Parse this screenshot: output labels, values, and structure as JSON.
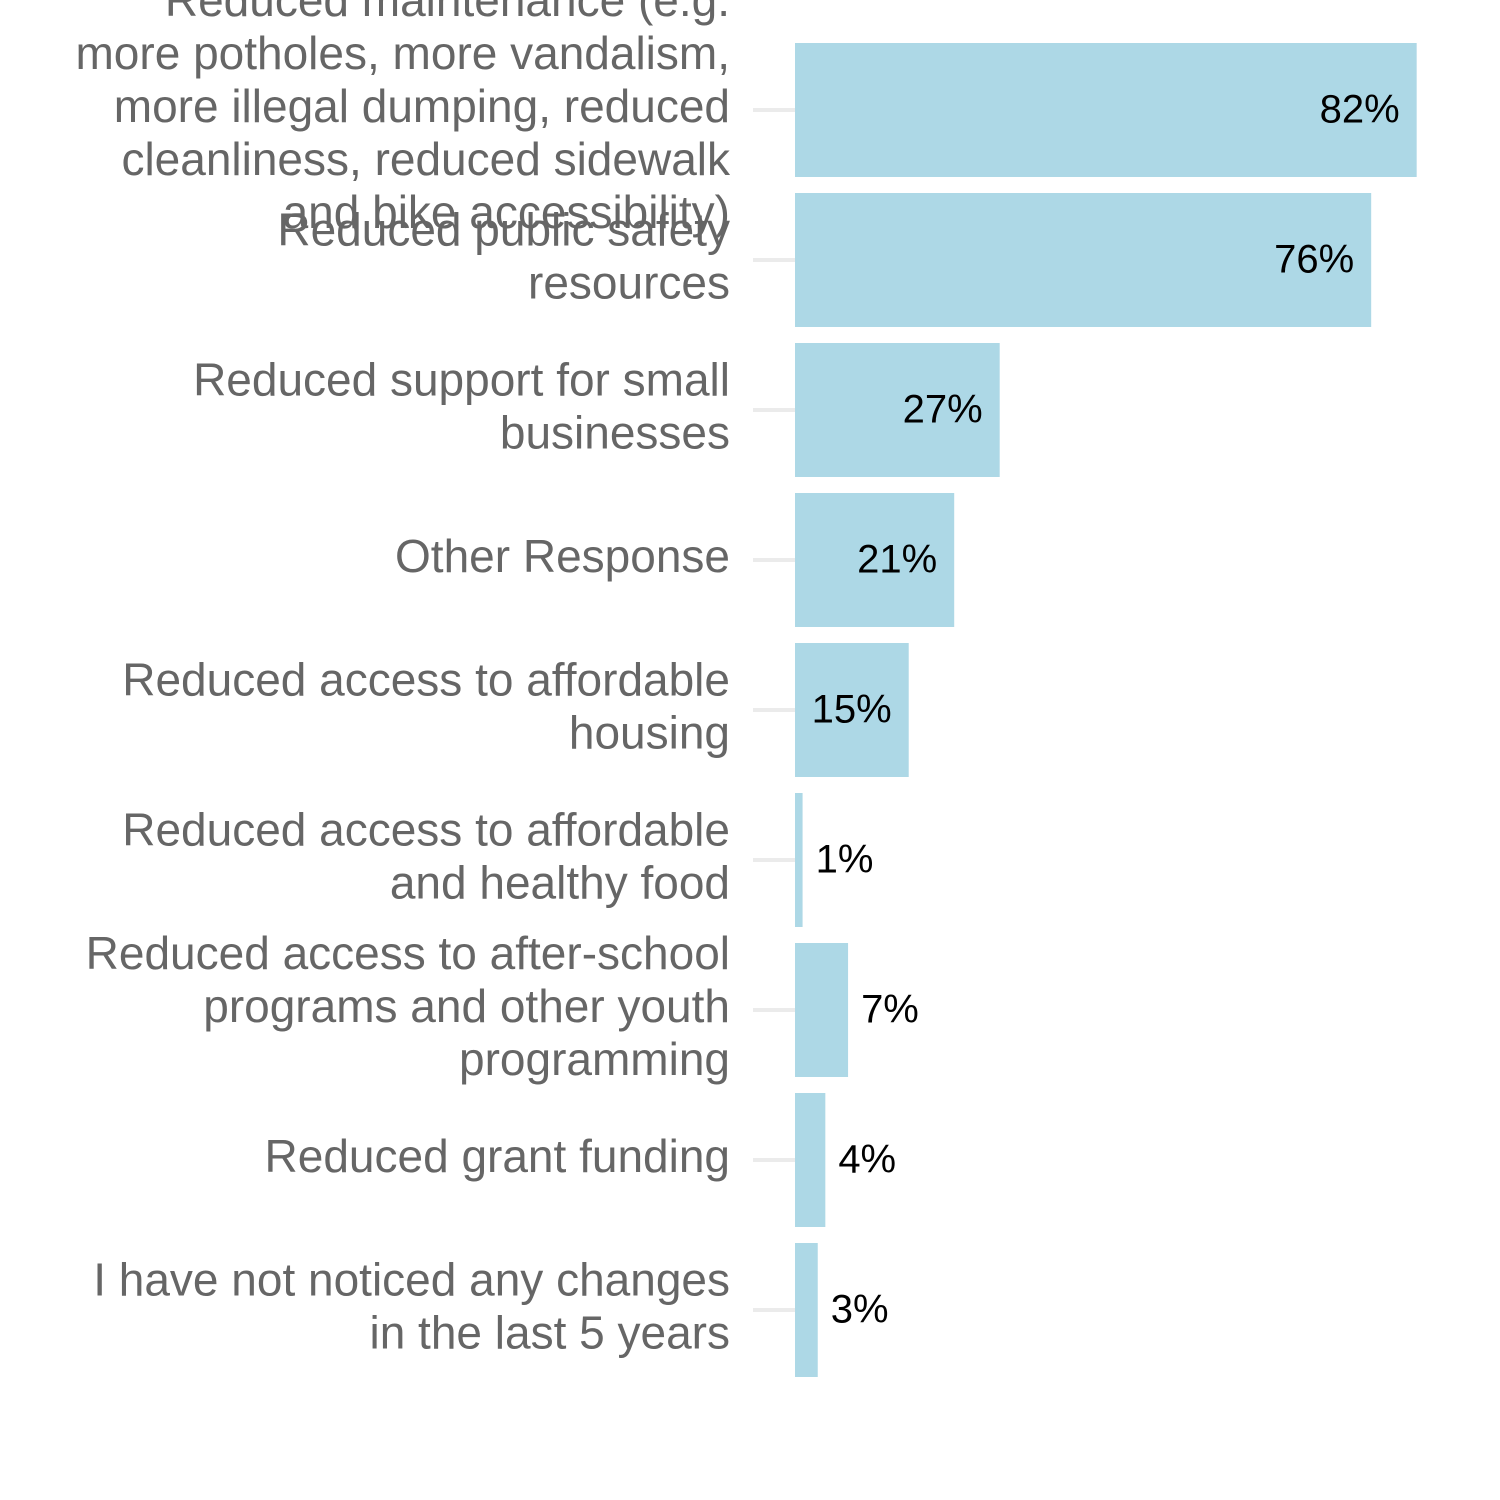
{
  "chart_data": {
    "type": "bar",
    "orientation": "horizontal",
    "categories": [
      [
        "Reduced maintenance (e.g.",
        "more potholes, more vandalism,",
        "more illegal dumping, reduced",
        "cleanliness, reduced sidewalk",
        "and bike accessibility)"
      ],
      [
        "Reduced public safety",
        "resources"
      ],
      [
        "Reduced support for small",
        "businesses"
      ],
      [
        "Other Response"
      ],
      [
        "Reduced access to affordable",
        "housing"
      ],
      [
        "Reduced access to affordable",
        "and healthy food"
      ],
      [
        "Reduced access to after-school",
        "programs and other youth",
        "programming"
      ],
      [
        "Reduced grant funding"
      ],
      [
        "I have not noticed any changes",
        "in the last 5 years"
      ]
    ],
    "values": [
      82,
      76,
      27,
      21,
      15,
      1,
      7,
      4,
      3
    ],
    "value_labels": [
      "82%",
      "76%",
      "27%",
      "21%",
      "15%",
      "1%",
      "7%",
      "4%",
      "3%"
    ],
    "color": "#add8e6",
    "xlim": [
      0,
      86
    ]
  }
}
